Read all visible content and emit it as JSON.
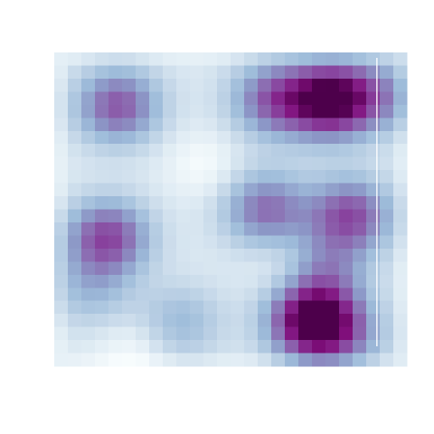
{
  "chart_data": {
    "type": "heatmap",
    "grid": {
      "columns": 26,
      "rows": 24,
      "xlim": [
        0,
        1
      ],
      "ylim": [
        0,
        1
      ],
      "vlim": [
        0,
        1
      ]
    },
    "colormap": {
      "name": "BuPu",
      "stops": [
        "#f7fcfd",
        "#e0ecf4",
        "#bfd3e6",
        "#9ebcda",
        "#8c96c6",
        "#8c6bb1",
        "#88419d",
        "#810f7c",
        "#4d004b"
      ]
    },
    "density_peaks": [
      {
        "x": 0.15,
        "y": 0.59,
        "amplitude": 0.6
      },
      {
        "x": 0.1,
        "y": 0.76,
        "amplitude": 0.22
      },
      {
        "x": 0.18,
        "y": 0.17,
        "amplitude": 0.55
      },
      {
        "x": 0.36,
        "y": 0.86,
        "amplitude": 0.24
      },
      {
        "x": 0.73,
        "y": 0.86,
        "amplitude": 0.9
      },
      {
        "x": 0.83,
        "y": 0.9,
        "amplitude": 0.3
      },
      {
        "x": 0.6,
        "y": 0.5,
        "amplitude": 0.48
      },
      {
        "x": 0.84,
        "y": 0.52,
        "amplitude": 0.58
      },
      {
        "x": 0.77,
        "y": 0.7,
        "amplitude": 0.32
      },
      {
        "x": 0.78,
        "y": 0.15,
        "amplitude": 0.85
      },
      {
        "x": 0.62,
        "y": 0.15,
        "amplitude": 0.5
      },
      {
        "x": 0.92,
        "y": 0.14,
        "amplitude": 0.35
      }
    ],
    "base_level": 0.13,
    "low_density_zones": [
      {
        "x": 0.42,
        "y": 0.36,
        "depth": 0.13
      },
      {
        "x": 0.22,
        "y": 0.96,
        "depth": 0.12
      },
      {
        "x": 0.65,
        "y": 0.68,
        "depth": 0.1
      }
    ],
    "grid_lines": false,
    "legend": "none"
  }
}
